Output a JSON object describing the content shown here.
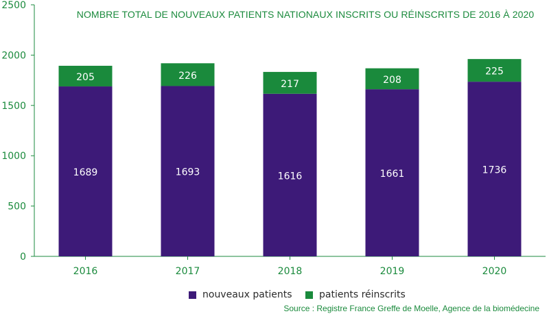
{
  "chart_data": {
    "type": "bar",
    "stacked": true,
    "title": "NOMBRE TOTAL DE NOUVEAUX PATIENTS NATIONAUX INSCRITS OU RÉINSCRITS DE 2016 À 2020",
    "categories": [
      "2016",
      "2017",
      "2018",
      "2019",
      "2020"
    ],
    "series": [
      {
        "name": "nouveaux patients",
        "values": [
          1689,
          1693,
          1616,
          1661,
          1736
        ],
        "color": "#3d1a78"
      },
      {
        "name": "patients réinscrits",
        "values": [
          205,
          226,
          217,
          208,
          225
        ],
        "color": "#1a8a3c"
      }
    ],
    "ylim": [
      0,
      2500
    ],
    "yticks": [
      0,
      500,
      1000,
      1500,
      2000,
      2500
    ],
    "legend_position": "bottom",
    "grid": false
  },
  "source": "Source : Registre France Greffe de Moelle, Agence de la biomédecine"
}
